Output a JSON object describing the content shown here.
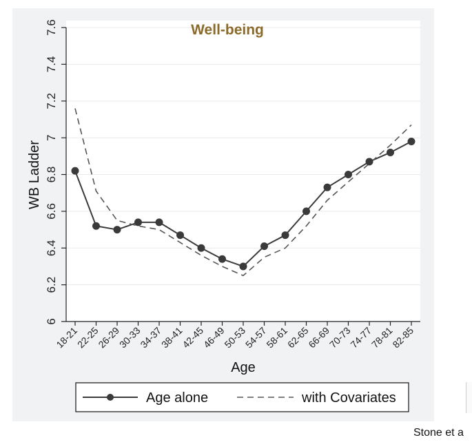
{
  "chart_data": {
    "type": "line",
    "title": "Well-being",
    "xlabel": "Age",
    "ylabel": "WB Ladder",
    "categories": [
      "18-21",
      "22-25",
      "26-29",
      "30-33",
      "34-37",
      "38-41",
      "42-45",
      "46-49",
      "50-53",
      "54-57",
      "58-61",
      "62-65",
      "66-69",
      "70-73",
      "74-77",
      "78-81",
      "82-85"
    ],
    "ylim": [
      6,
      7.6
    ],
    "yticks": [
      "6",
      "6.2",
      "6.4",
      "6.6",
      "6.8",
      "7",
      "7.2",
      "7.4",
      "7.6"
    ],
    "grid": true,
    "legend": "bottom",
    "series": [
      {
        "name": "Age alone",
        "style": "solid-with-markers",
        "color": "#3a3a3a",
        "values": [
          6.82,
          6.52,
          6.5,
          6.54,
          6.54,
          6.47,
          6.4,
          6.34,
          6.3,
          6.41,
          6.47,
          6.6,
          6.73,
          6.8,
          6.87,
          6.92,
          6.98
        ]
      },
      {
        "name": "with Covariates",
        "style": "dashed",
        "color": "#555555",
        "values": [
          7.16,
          6.71,
          6.55,
          6.52,
          6.5,
          6.43,
          6.36,
          6.3,
          6.25,
          6.35,
          6.4,
          6.52,
          6.66,
          6.76,
          6.86,
          6.96,
          7.07
        ]
      }
    ],
    "title_color": "#8b6a2a"
  },
  "credit": "Stone et a"
}
